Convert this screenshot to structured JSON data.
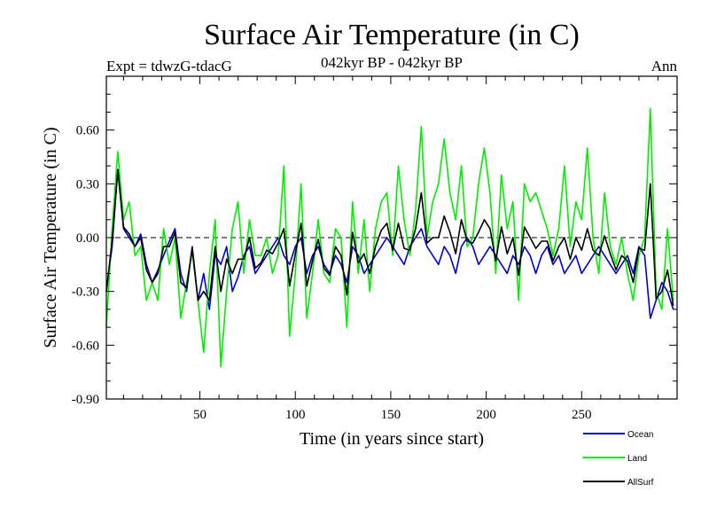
{
  "chart_data": {
    "type": "line",
    "title": "Surface Air Temperature (in C)",
    "subtitle": "042kyr BP - 042kyr BP",
    "expt_label": "Expt = tdwzG-tdacG",
    "season_label": "Ann",
    "xlabel": "Time (in years since start)",
    "ylabel": "Surface Air Temperature (in C)",
    "xlim": [
      1,
      300
    ],
    "ylim": [
      -0.9,
      0.9
    ],
    "xticks": [
      50,
      100,
      150,
      200,
      250
    ],
    "xtick_labels": [
      "50",
      "100",
      "150",
      "200",
      "250"
    ],
    "yticks": [
      -0.9,
      -0.6,
      -0.3,
      0.0,
      0.3,
      0.6
    ],
    "ytick_labels": [
      "-0.90",
      "-0.60",
      "-0.30",
      "0.00",
      "0.30",
      "0.60"
    ],
    "zero_line": true,
    "grid": false,
    "legend_position": "bottom-right",
    "x_step": 3,
    "series": [
      {
        "name": "Ocean",
        "color": "#0000cc",
        "values": [
          -0.3,
          -0.05,
          0.38,
          0.05,
          0.0,
          -0.05,
          0.02,
          -0.15,
          -0.25,
          -0.18,
          -0.1,
          -0.02,
          0.05,
          -0.2,
          -0.3,
          -0.05,
          -0.35,
          -0.2,
          -0.4,
          -0.1,
          -0.15,
          -0.05,
          -0.3,
          -0.22,
          -0.1,
          -0.05,
          -0.2,
          -0.15,
          -0.1,
          -0.05,
          0.0,
          -0.1,
          -0.15,
          -0.05,
          0.0,
          -0.2,
          -0.1,
          -0.05,
          -0.15,
          -0.2,
          -0.1,
          -0.15,
          -0.25,
          -0.05,
          -0.1,
          -0.2,
          -0.15,
          -0.1,
          -0.05,
          0.0,
          -0.05,
          -0.1,
          -0.15,
          -0.05,
          0.0,
          0.05,
          -0.05,
          -0.1,
          -0.15,
          -0.05,
          -0.1,
          -0.2,
          -0.05,
          0.0,
          -0.05,
          -0.15,
          -0.1,
          -0.05,
          -0.1,
          -0.15,
          -0.2,
          -0.1,
          -0.15,
          -0.05,
          -0.1,
          -0.2,
          -0.1,
          -0.05,
          -0.15,
          -0.1,
          -0.2,
          -0.15,
          -0.1,
          -0.2,
          -0.15,
          -0.1,
          -0.05,
          -0.1,
          -0.15,
          -0.2,
          -0.15,
          -0.1,
          -0.2,
          -0.05,
          -0.1,
          -0.45,
          -0.35,
          -0.25,
          -0.3,
          -0.4
        ]
      },
      {
        "name": "Land",
        "color": "#00ee00",
        "values": [
          -0.5,
          0.05,
          0.48,
          0.1,
          0.2,
          -0.1,
          -0.05,
          -0.35,
          -0.25,
          -0.35,
          0.05,
          -0.15,
          0.0,
          -0.45,
          -0.25,
          -0.08,
          -0.35,
          -0.64,
          -0.2,
          0.1,
          -0.72,
          -0.3,
          0.05,
          0.2,
          -0.2,
          0.1,
          -0.1,
          -0.1,
          0.0,
          -0.2,
          -0.1,
          0.4,
          -0.55,
          -0.2,
          0.3,
          -0.45,
          -0.2,
          0.1,
          -0.2,
          -0.25,
          0.05,
          0.0,
          -0.5,
          0.2,
          -0.2,
          0.1,
          -0.3,
          0.05,
          0.2,
          0.25,
          -0.1,
          0.4,
          0.1,
          -0.1,
          0.15,
          0.62,
          0.0,
          0.2,
          0.3,
          0.55,
          0.25,
          0.1,
          0.4,
          -0.05,
          0.0,
          0.3,
          0.5,
          0.25,
          -0.2,
          0.35,
          0.05,
          0.2,
          -0.35,
          0.3,
          0.2,
          0.25,
          0.15,
          0.05,
          -0.1,
          0.05,
          0.4,
          -0.05,
          0.2,
          0.1,
          0.5,
          0.0,
          -0.2,
          0.25,
          -0.05,
          -0.15,
          0.0,
          -0.2,
          -0.35,
          -0.1,
          0.0,
          0.72,
          -0.3,
          -0.4,
          0.05,
          -0.35
        ]
      },
      {
        "name": "AllSurf",
        "color": "#000000",
        "values": [
          -0.3,
          -0.02,
          0.38,
          0.06,
          0.02,
          -0.05,
          0.0,
          -0.18,
          -0.25,
          -0.2,
          -0.05,
          -0.05,
          0.03,
          -0.25,
          -0.28,
          -0.06,
          -0.35,
          -0.3,
          -0.35,
          -0.05,
          -0.3,
          -0.12,
          -0.2,
          -0.12,
          -0.12,
          0.0,
          -0.17,
          -0.14,
          -0.07,
          -0.09,
          -0.03,
          0.05,
          -0.27,
          -0.09,
          0.08,
          -0.27,
          -0.13,
          -0.01,
          -0.17,
          -0.21,
          -0.05,
          -0.1,
          -0.32,
          0.03,
          -0.14,
          -0.09,
          -0.2,
          -0.05,
          0.04,
          0.08,
          -0.07,
          0.08,
          -0.06,
          -0.07,
          0.05,
          0.25,
          -0.03,
          0.0,
          0.0,
          0.12,
          0.03,
          -0.09,
          0.1,
          -0.02,
          -0.03,
          0.03,
          0.1,
          0.05,
          -0.13,
          0.06,
          -0.09,
          0.0,
          -0.21,
          0.06,
          0.0,
          -0.06,
          -0.02,
          -0.02,
          -0.13,
          -0.05,
          0.0,
          -0.12,
          0.0,
          -0.07,
          0.05,
          -0.07,
          -0.1,
          0.01,
          -0.09,
          -0.18,
          -0.1,
          -0.13,
          -0.25,
          -0.06,
          -0.07,
          0.3,
          -0.34,
          -0.3,
          -0.18,
          -0.38
        ]
      }
    ]
  }
}
